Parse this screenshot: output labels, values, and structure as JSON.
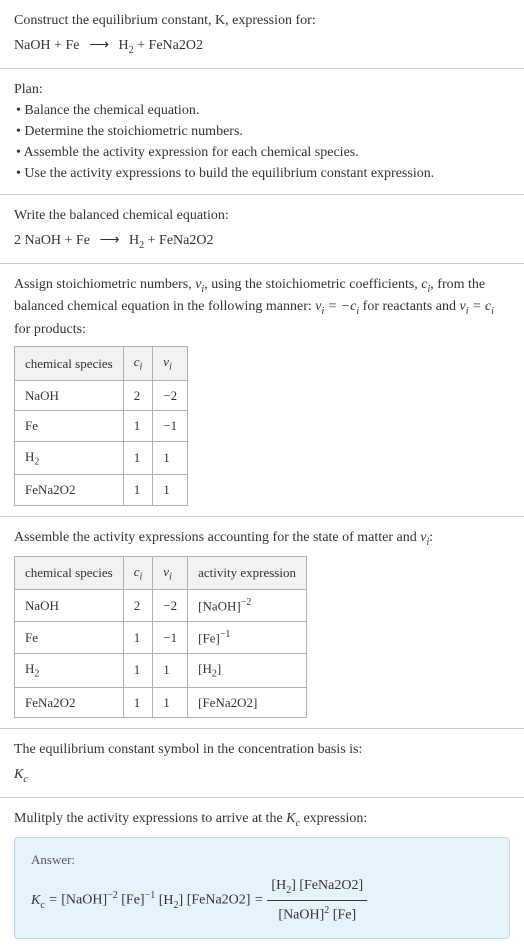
{
  "header": {
    "prompt": "Construct the equilibrium constant, K, expression for:",
    "equation_lhs": "NaOH + Fe",
    "equation_rhs": "H₂ + FeNa2O2"
  },
  "plan": {
    "title": "Plan:",
    "items": [
      "• Balance the chemical equation.",
      "• Determine the stoichiometric numbers.",
      "• Assemble the activity expression for each chemical species.",
      "• Use the activity expressions to build the equilibrium constant expression."
    ]
  },
  "balanced": {
    "title": "Write the balanced chemical equation:",
    "equation": "2 NaOH + Fe  ⟶  H₂ + FeNa2O2"
  },
  "assign": {
    "text_pre": "Assign stoichiometric numbers, ",
    "nu": "νᵢ",
    "text_mid1": ", using the stoichiometric coefficients, ",
    "ci": "cᵢ",
    "text_mid2": ", from the balanced chemical equation in the following manner: ",
    "rel1": "νᵢ = −cᵢ",
    "text_mid3": " for reactants and ",
    "rel2": "νᵢ = cᵢ",
    "text_end": " for products:"
  },
  "table1": {
    "headers": [
      "chemical species",
      "cᵢ",
      "νᵢ"
    ],
    "rows": [
      [
        "NaOH",
        "2",
        "−2"
      ],
      [
        "Fe",
        "1",
        "−1"
      ],
      [
        "H₂",
        "1",
        "1"
      ],
      [
        "FeNa2O2",
        "1",
        "1"
      ]
    ]
  },
  "assemble": {
    "text": "Assemble the activity expressions accounting for the state of matter and νᵢ:"
  },
  "table2": {
    "headers": [
      "chemical species",
      "cᵢ",
      "νᵢ",
      "activity expression"
    ],
    "rows": [
      [
        "NaOH",
        "2",
        "−2",
        "[NaOH]⁻²"
      ],
      [
        "Fe",
        "1",
        "−1",
        "[Fe]⁻¹"
      ],
      [
        "H₂",
        "1",
        "1",
        "[H₂]"
      ],
      [
        "FeNa2O2",
        "1",
        "1",
        "[FeNa2O2]"
      ]
    ]
  },
  "symbol": {
    "text": "The equilibrium constant symbol in the concentration basis is:",
    "kc": "K_c"
  },
  "multiply": {
    "text": "Mulitply the activity expressions to arrive at the K_c expression:"
  },
  "answer": {
    "label": "Answer:",
    "kc_eq": "K_c = [NaOH]⁻² [Fe]⁻¹ [H₂] [FeNa2O2] = ",
    "frac_num": "[H₂] [FeNa2O2]",
    "frac_den": "[NaOH]² [Fe]"
  }
}
